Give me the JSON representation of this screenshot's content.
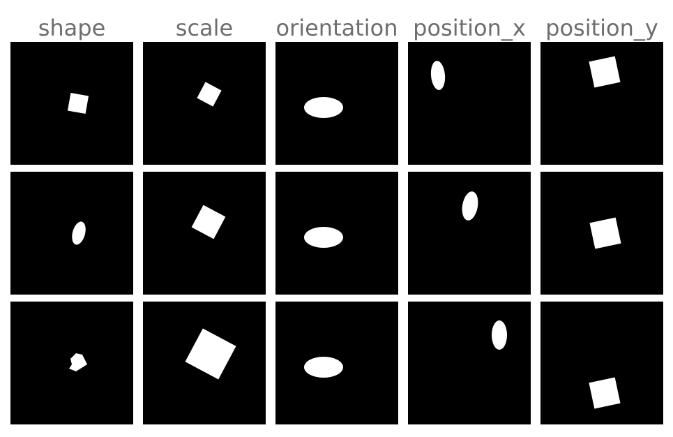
{
  "columns": [
    {
      "title": "shape"
    },
    {
      "title": "scale"
    },
    {
      "title": "orientation"
    },
    {
      "title": "position_x"
    },
    {
      "title": "position_y"
    }
  ],
  "colors": {
    "background": "#ffffff",
    "cell": "#000000",
    "sprite": "#ffffff",
    "title": "#6e6e6e"
  },
  "grid": {
    "rows": 3,
    "cols": 5,
    "sprites": [
      [
        "square-sprite",
        "square-sprite",
        "ellipse-sprite",
        "ellipse-sprite",
        "square-sprite"
      ],
      [
        "ellipse-sprite",
        "square-sprite",
        "ellipse-sprite",
        "ellipse-sprite",
        "square-sprite"
      ],
      [
        "heart-sprite",
        "square-sprite",
        "ellipse-sprite",
        "ellipse-sprite",
        "square-sprite"
      ]
    ]
  }
}
